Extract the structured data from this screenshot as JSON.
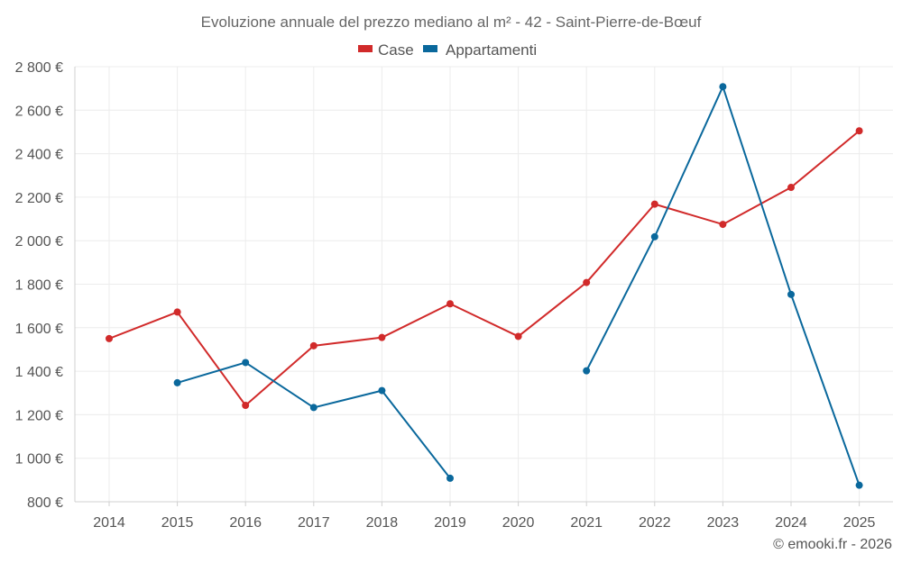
{
  "chart_data": {
    "type": "line",
    "title": "Evoluzione annuale del prezzo mediano al m² - 42 - Saint-Pierre-de-Bœuf",
    "xlabel": "",
    "ylabel": "",
    "x": [
      "2014",
      "2015",
      "2016",
      "2017",
      "2018",
      "2019",
      "2020",
      "2021",
      "2022",
      "2023",
      "2024",
      "2025"
    ],
    "ylim": [
      800,
      2800
    ],
    "yticks": [
      800,
      1000,
      1200,
      1400,
      1600,
      1800,
      2000,
      2200,
      2400,
      2600,
      2800
    ],
    "ytick_labels": [
      "800 €",
      "1 000 €",
      "1 200 €",
      "1 400 €",
      "1 600 €",
      "1 800 €",
      "2 000 €",
      "2 200 €",
      "2 400 €",
      "2 600 €",
      "2 800 €"
    ],
    "grid": true,
    "legend_position": "top-center",
    "series": [
      {
        "name": "Case",
        "color": "#d12a2a",
        "values": [
          1550,
          1672,
          1243,
          1517,
          1555,
          1710,
          1560,
          1808,
          2168,
          2075,
          2245,
          2505
        ]
      },
      {
        "name": "Appartamenti",
        "color": "#0a689c",
        "values": [
          null,
          1347,
          1440,
          1233,
          1311,
          908,
          null,
          1402,
          2018,
          2708,
          1753,
          876
        ]
      }
    ],
    "credit": "© emooki.fr - 2026"
  }
}
